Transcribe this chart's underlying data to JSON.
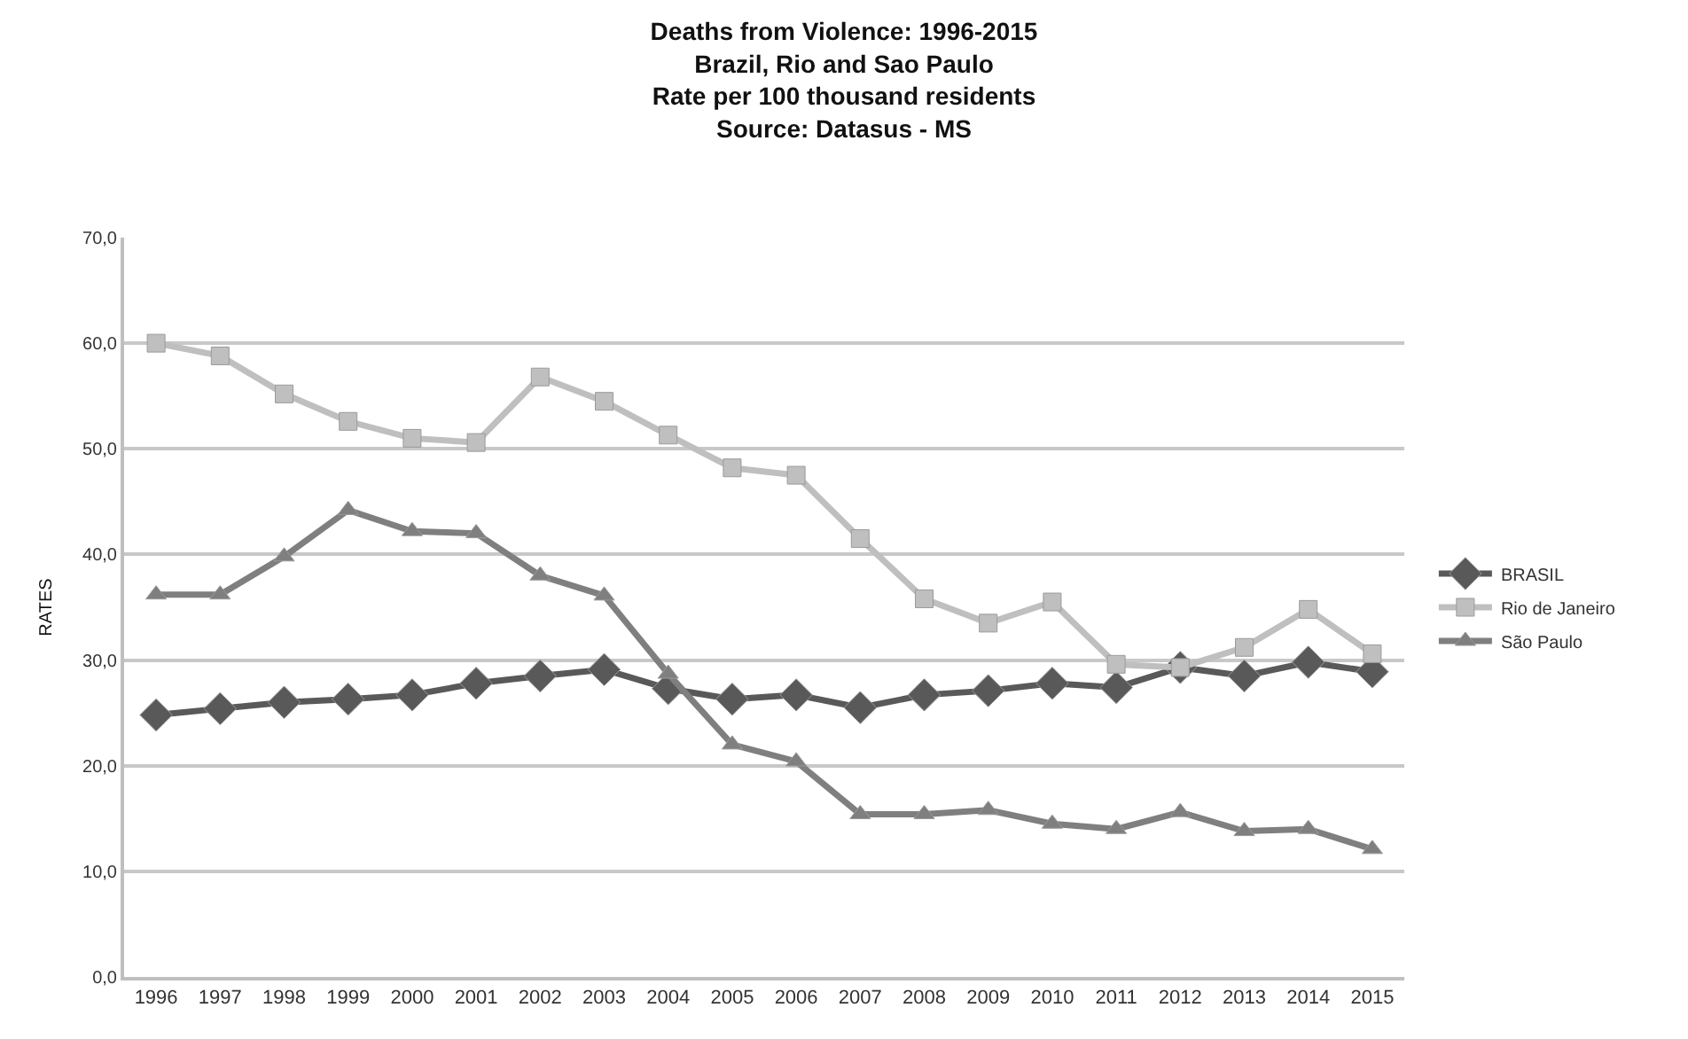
{
  "chart_data": {
    "type": "line",
    "title": "Deaths from Violence: 1996-2015\nBrazil, Rio and Sao Paulo\nRate per 100 thousand residents\nSource: Datasus - MS",
    "ylabel": "RATES",
    "categories": [
      "1996",
      "1997",
      "1998",
      "1999",
      "2000",
      "2001",
      "2002",
      "2003",
      "2004",
      "2005",
      "2006",
      "2007",
      "2008",
      "2009",
      "2010",
      "2011",
      "2012",
      "2013",
      "2014",
      "2015"
    ],
    "series": [
      {
        "name": "BRASIL",
        "color": "#595959",
        "marker": "diamond",
        "values": [
          24.8,
          25.4,
          26.0,
          26.3,
          26.7,
          27.8,
          28.5,
          29.1,
          27.3,
          26.3,
          26.7,
          25.5,
          26.7,
          27.1,
          27.8,
          27.4,
          29.3,
          28.5,
          29.8,
          28.9
        ]
      },
      {
        "name": "Rio de Janeiro",
        "color": "#bfbfbf",
        "marker": "square",
        "values": [
          60.0,
          58.8,
          55.2,
          52.6,
          51.0,
          50.6,
          56.8,
          54.5,
          51.3,
          48.2,
          47.5,
          41.5,
          35.8,
          33.5,
          35.5,
          29.6,
          29.3,
          31.2,
          34.8,
          30.6
        ]
      },
      {
        "name": "São Paulo",
        "color": "#7f7f7f",
        "marker": "triangle",
        "values": [
          36.2,
          36.2,
          39.8,
          44.2,
          42.2,
          42.0,
          38.0,
          36.1,
          28.7,
          22.0,
          20.4,
          15.4,
          15.4,
          15.8,
          14.5,
          14.0,
          15.6,
          13.8,
          14.0,
          12.1
        ]
      }
    ],
    "ylim": [
      0,
      70
    ],
    "yticks": [
      {
        "value": 0,
        "label": "0,0"
      },
      {
        "value": 10,
        "label": "10,0"
      },
      {
        "value": 20,
        "label": "20,0"
      },
      {
        "value": 30,
        "label": "30,0"
      },
      {
        "value": 40,
        "label": "40,0"
      },
      {
        "value": 50,
        "label": "50,0"
      },
      {
        "value": 60,
        "label": "60,0"
      },
      {
        "value": 70,
        "label": "70,0"
      }
    ],
    "grid": "y",
    "legend": "right",
    "line_style": "solid"
  }
}
